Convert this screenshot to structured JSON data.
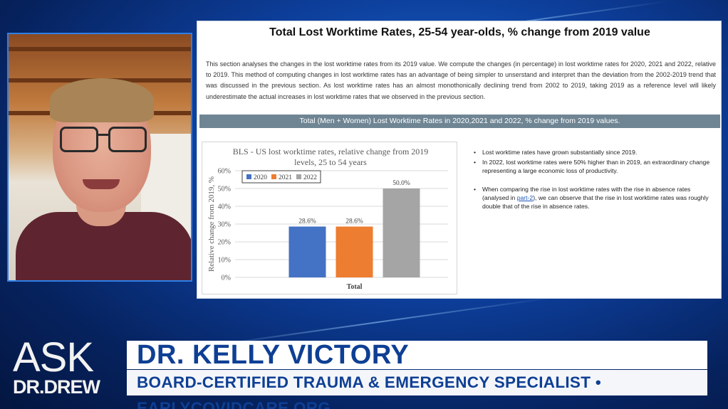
{
  "document": {
    "title": "Total Lost Worktime Rates, 25-54 year-olds, % change from 2019 value",
    "paragraph": "This section analyses the changes in the lost worktime rates from its 2019 value. We compute the changes (in percentage) in lost worktime rates for 2020, 2021 and 2022, relative to 2019. This method of computing changes in lost worktime rates has an advantage of being simpler to unserstand and interpret than the deviation from the 2002-2019 trend that was discussed in the previous section. As lost worktime rates has an almost monothonically declining trend from 2002 to 2019, taking 2019 as a reference level will likely underestimate the actual increases in lost worktime rates that we observed in the previous section.",
    "banner": "Total (Men + Women) Lost Worktime Rates in 2020,2021 and 2022, % change from 2019 values.",
    "bullets_group1": [
      "Lost worktime rates have grown substantially since 2019.",
      "In 2022, lost worktime rates were 50% higher than in 2019, an extraordinary change representing a large economic loss of productivity."
    ],
    "bullet_group2_before_link": "When comparing the rise in lost worktime rates with the rise in absence rates (analysed in ",
    "bullet_group2_link": "part-2",
    "bullet_group2_after_link": "), we can observe that the rise in lost worktime rates was roughly double that of the rise in absence rates."
  },
  "chart_data": {
    "type": "bar",
    "title": "BLS - US lost worktime rates, relative change from 2019 levels, 25 to 54 years",
    "ylabel": "Relative change from 2019, %",
    "xlabel": "Total",
    "categories": [
      "Total"
    ],
    "series": [
      {
        "name": "2020",
        "values": [
          28.6
        ],
        "label": "28.6%",
        "color": "#4472c4"
      },
      {
        "name": "2021",
        "values": [
          28.6
        ],
        "label": "28.6%",
        "color": "#ed7d31"
      },
      {
        "name": "2022",
        "values": [
          50.0
        ],
        "label": "50.0%",
        "color": "#a5a5a5"
      }
    ],
    "ylim": [
      0,
      60
    ],
    "yticks": [
      "0%",
      "10%",
      "20%",
      "30%",
      "40%",
      "50%",
      "60%"
    ],
    "grid": true,
    "legend": "top-left"
  },
  "lower_third": {
    "logo_top": "ASK",
    "logo_bottom": "DR.DREW",
    "name": "DR. KELLY VICTORY",
    "subtitle": "BOARD-CERTIFIED TRAUMA & EMERGENCY SPECIALIST • EARLYCOVIDCARE.ORG"
  }
}
